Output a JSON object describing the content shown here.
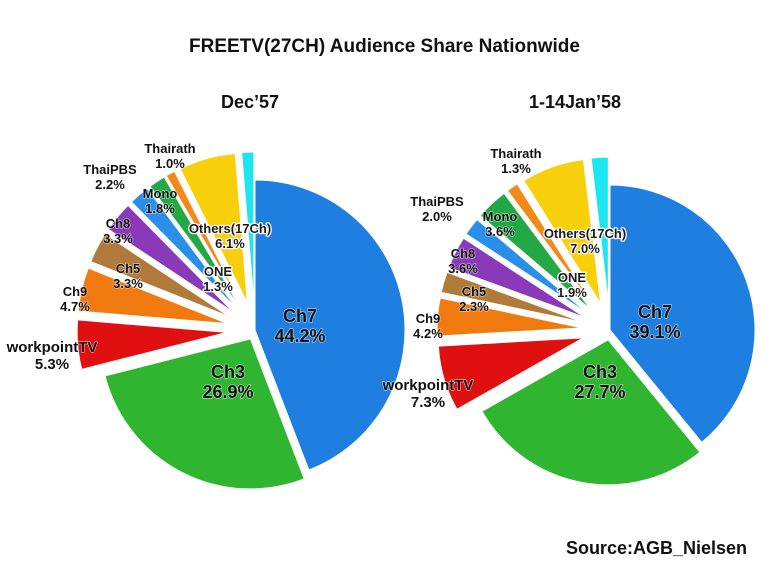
{
  "title": "FREETV(27CH) Audience Share Nationwide",
  "source": "Source:AGB_Nielsen",
  "colors": {
    "Ch7": "#1e7fe0",
    "Ch3": "#2fb52f",
    "workpointTV": "#e01010",
    "Ch9": "#f07a10",
    "Ch5": "#b07a3a",
    "Ch8": "#8a3ab9",
    "ThaiPBS": "#2a8fe8",
    "Mono": "#22a844",
    "Thairath": "#f28a18",
    "Others(17Ch)": "#f7cf0a",
    "ONE": "#1ee6f0"
  },
  "chart_data": [
    {
      "type": "pie",
      "title": "Dec’57",
      "categories": [
        "Ch7",
        "Ch3",
        "workpointTV",
        "Ch9",
        "Ch5",
        "Ch8",
        "ThaiPBS",
        "Mono",
        "Thairath",
        "Others(17Ch)",
        "ONE"
      ],
      "values": [
        44.2,
        26.9,
        5.3,
        4.7,
        3.3,
        3.3,
        2.2,
        1.8,
        1.0,
        6.1,
        1.3
      ],
      "labels": [
        "44.2%",
        "26.9%",
        "5.3%",
        "4.7%",
        "3.3%",
        "3.3%",
        "2.2%",
        "1.8%",
        "1.0%",
        "6.1%",
        "1.3%"
      ]
    },
    {
      "type": "pie",
      "title": "1-14Jan’58",
      "categories": [
        "Ch7",
        "Ch3",
        "workpointTV",
        "Ch9",
        "Ch5",
        "Ch8",
        "ThaiPBS",
        "Mono",
        "Thairath",
        "Others(17Ch)",
        "ONE"
      ],
      "values": [
        39.1,
        27.7,
        7.3,
        4.2,
        2.3,
        3.6,
        2.0,
        3.6,
        1.3,
        7.0,
        1.9
      ],
      "labels": [
        "39.1%",
        "27.7%",
        "7.3%",
        "4.2%",
        "2.3%",
        "3.6%",
        "2.0%",
        "3.6%",
        "1.3%",
        "7.0%",
        "1.9%"
      ]
    }
  ]
}
